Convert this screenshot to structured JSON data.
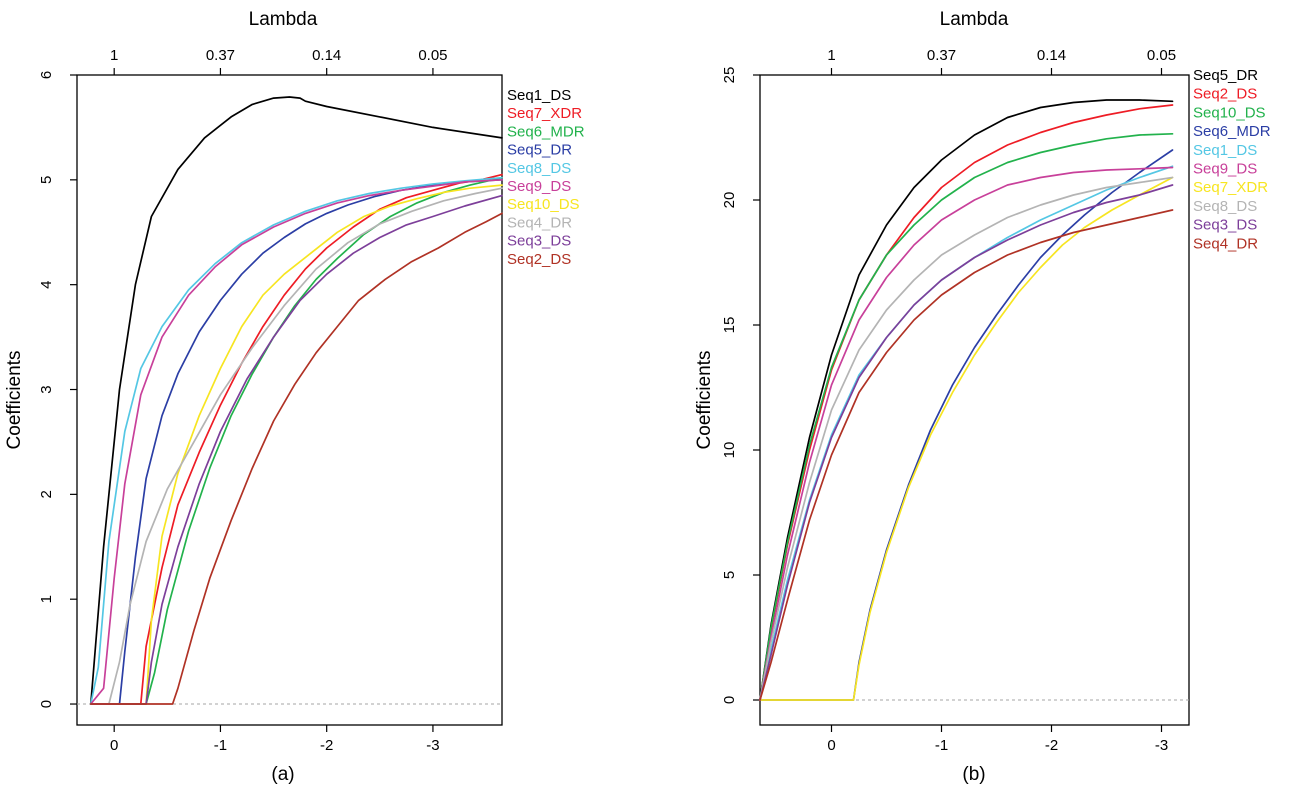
{
  "colors": {
    "black": "#000000",
    "red": "#ee1c25",
    "green": "#22b24c",
    "blue": "#2b3ea5",
    "cyan": "#54c7e4",
    "magenta": "#c8409a",
    "yellow": "#f7e521",
    "gray": "#b4b4b4",
    "purple": "#7d3f9a",
    "darkred": "#b03225",
    "zero_line": "#a6a6a6"
  },
  "chart_data": [
    {
      "type": "line",
      "title": "Lambda",
      "caption": "(a)",
      "xlabel": "",
      "ylabel": "Coefficients",
      "xlim": [
        0.35,
        -3.65
      ],
      "ylim": [
        -0.2,
        6.0
      ],
      "x_reversed": true,
      "grid": false,
      "zero_line": true,
      "x_ticks": [
        0,
        -1,
        -2,
        -3
      ],
      "x_tick_labels": [
        "0",
        "-1",
        "-2",
        "-3"
      ],
      "y_ticks": [
        0,
        1,
        2,
        3,
        4,
        5,
        6
      ],
      "y_tick_labels": [
        "0",
        "1",
        "2",
        "3",
        "4",
        "5",
        "6"
      ],
      "top_axis_ticks": [
        0,
        -1,
        -2,
        -3
      ],
      "top_axis_labels": [
        "1",
        "0.37",
        "0.14",
        "0.05"
      ],
      "legend_placement": "right",
      "series": [
        {
          "name": "Seq1_DS",
          "color": "black",
          "x": [
            0.22,
            0.1,
            -0.05,
            -0.2,
            -0.35,
            -0.6,
            -0.85,
            -1.1,
            -1.3,
            -1.5,
            -1.65,
            -1.75,
            -1.8,
            -2.0,
            -2.5,
            -3.0,
            -3.65
          ],
          "y": [
            0.0,
            1.5,
            3.0,
            4.0,
            4.65,
            5.1,
            5.4,
            5.6,
            5.72,
            5.78,
            5.79,
            5.78,
            5.75,
            5.7,
            5.6,
            5.5,
            5.4
          ]
        },
        {
          "name": "Seq7_XDR",
          "color": "red",
          "x": [
            0.22,
            -0.25,
            -0.3,
            -0.45,
            -0.6,
            -0.8,
            -1.0,
            -1.2,
            -1.4,
            -1.6,
            -1.8,
            -2.0,
            -2.25,
            -2.5,
            -2.75,
            -3.0,
            -3.25,
            -3.45,
            -3.65
          ],
          "y": [
            0.0,
            0.0,
            0.55,
            1.3,
            1.9,
            2.4,
            2.85,
            3.25,
            3.6,
            3.9,
            4.15,
            4.35,
            4.55,
            4.72,
            4.83,
            4.9,
            4.97,
            5.0,
            5.05
          ]
        },
        {
          "name": "Seq6_MDR",
          "color": "green",
          "x": [
            0.22,
            -0.3,
            -0.38,
            -0.5,
            -0.7,
            -0.9,
            -1.1,
            -1.3,
            -1.5,
            -1.7,
            -1.9,
            -2.1,
            -2.35,
            -2.6,
            -2.85,
            -3.1,
            -3.35,
            -3.65
          ],
          "y": [
            0.0,
            0.0,
            0.3,
            0.9,
            1.65,
            2.25,
            2.75,
            3.15,
            3.5,
            3.8,
            4.05,
            4.25,
            4.48,
            4.65,
            4.78,
            4.88,
            4.95,
            5.02
          ]
        },
        {
          "name": "Seq5_DR",
          "color": "blue",
          "x": [
            0.22,
            -0.05,
            -0.1,
            -0.2,
            -0.3,
            -0.45,
            -0.6,
            -0.8,
            -1.0,
            -1.2,
            -1.4,
            -1.6,
            -1.8,
            -2.0,
            -2.2,
            -2.45,
            -2.7,
            -3.0,
            -3.3,
            -3.65
          ],
          "y": [
            0.0,
            0.0,
            0.5,
            1.4,
            2.15,
            2.75,
            3.15,
            3.55,
            3.85,
            4.1,
            4.3,
            4.45,
            4.58,
            4.68,
            4.76,
            4.84,
            4.9,
            4.95,
            4.98,
            5.0
          ]
        },
        {
          "name": "Seq8_DS",
          "color": "cyan",
          "x": [
            0.22,
            0.15,
            0.05,
            -0.1,
            -0.25,
            -0.45,
            -0.7,
            -0.95,
            -1.2,
            -1.5,
            -1.8,
            -2.1,
            -2.4,
            -2.7,
            -3.0,
            -3.3,
            -3.65
          ],
          "y": [
            0.0,
            0.35,
            1.55,
            2.6,
            3.2,
            3.6,
            3.95,
            4.2,
            4.4,
            4.57,
            4.7,
            4.8,
            4.87,
            4.92,
            4.96,
            4.99,
            5.02
          ]
        },
        {
          "name": "Seq9_DS",
          "color": "magenta",
          "x": [
            0.22,
            0.1,
            0.0,
            -0.1,
            -0.25,
            -0.45,
            -0.7,
            -0.95,
            -1.2,
            -1.5,
            -1.8,
            -2.1,
            -2.4,
            -2.7,
            -3.0,
            -3.3,
            -3.65
          ],
          "y": [
            0.0,
            0.15,
            1.2,
            2.1,
            2.95,
            3.5,
            3.9,
            4.17,
            4.38,
            4.55,
            4.68,
            4.78,
            4.85,
            4.9,
            4.94,
            4.98,
            5.0
          ]
        },
        {
          "name": "Seq10_DS",
          "color": "yellow",
          "x": [
            0.22,
            -0.3,
            -0.35,
            -0.45,
            -0.6,
            -0.8,
            -1.0,
            -1.2,
            -1.4,
            -1.6,
            -1.85,
            -2.1,
            -2.35,
            -2.6,
            -2.85,
            -3.1,
            -3.35,
            -3.65
          ],
          "y": [
            0.0,
            0.0,
            0.8,
            1.6,
            2.2,
            2.75,
            3.2,
            3.6,
            3.9,
            4.1,
            4.3,
            4.5,
            4.65,
            4.75,
            4.82,
            4.88,
            4.92,
            4.95
          ]
        },
        {
          "name": "Seq4_DR",
          "color": "gray",
          "x": [
            0.22,
            0.05,
            -0.05,
            -0.15,
            -0.3,
            -0.5,
            -0.75,
            -1.0,
            -1.3,
            -1.6,
            -1.9,
            -2.2,
            -2.5,
            -2.8,
            -3.1,
            -3.4,
            -3.65
          ],
          "y": [
            0.0,
            0.0,
            0.4,
            0.95,
            1.55,
            2.05,
            2.5,
            2.95,
            3.4,
            3.8,
            4.15,
            4.4,
            4.58,
            4.7,
            4.8,
            4.87,
            4.92
          ]
        },
        {
          "name": "Seq3_DS",
          "color": "purple",
          "x": [
            0.22,
            -0.3,
            -0.35,
            -0.45,
            -0.6,
            -0.8,
            -1.0,
            -1.25,
            -1.5,
            -1.75,
            -2.0,
            -2.25,
            -2.5,
            -2.75,
            -3.0,
            -3.3,
            -3.65
          ],
          "y": [
            0.0,
            0.0,
            0.4,
            0.95,
            1.5,
            2.1,
            2.6,
            3.1,
            3.5,
            3.85,
            4.1,
            4.3,
            4.45,
            4.57,
            4.65,
            4.75,
            4.85
          ]
        },
        {
          "name": "Seq2_DS",
          "color": "darkred",
          "x": [
            0.22,
            -0.55,
            -0.6,
            -0.75,
            -0.9,
            -1.1,
            -1.3,
            -1.5,
            -1.7,
            -1.9,
            -2.1,
            -2.3,
            -2.55,
            -2.8,
            -3.05,
            -3.3,
            -3.5,
            -3.65
          ],
          "y": [
            0.0,
            0.0,
            0.15,
            0.7,
            1.2,
            1.75,
            2.25,
            2.7,
            3.05,
            3.35,
            3.6,
            3.85,
            4.05,
            4.22,
            4.35,
            4.5,
            4.6,
            4.68
          ]
        }
      ]
    },
    {
      "type": "line",
      "title": "Lambda",
      "caption": "(b)",
      "xlabel": "",
      "ylabel": "Coefficients",
      "xlim": [
        0.65,
        -3.25
      ],
      "ylim": [
        -1.0,
        25.0
      ],
      "x_reversed": true,
      "grid": false,
      "zero_line": true,
      "x_ticks": [
        0,
        -1,
        -2,
        -3
      ],
      "x_tick_labels": [
        "0",
        "-1",
        "-2",
        "-3"
      ],
      "y_ticks": [
        0,
        5,
        10,
        15,
        20,
        25
      ],
      "y_tick_labels": [
        "0",
        "5",
        "10",
        "15",
        "20",
        "25"
      ],
      "top_axis_ticks": [
        0,
        -1,
        -2,
        -3
      ],
      "top_axis_labels": [
        "1",
        "0.37",
        "0.14",
        "0.05"
      ],
      "legend_placement": "right",
      "series": [
        {
          "name": "Seq5_DR",
          "color": "black",
          "x": [
            0.65,
            0.55,
            0.4,
            0.2,
            0.0,
            -0.25,
            -0.5,
            -0.75,
            -1.0,
            -1.3,
            -1.6,
            -1.9,
            -2.2,
            -2.5,
            -2.8,
            -3.1
          ],
          "y": [
            0.0,
            3.0,
            6.5,
            10.5,
            13.8,
            17.0,
            19.0,
            20.5,
            21.6,
            22.6,
            23.3,
            23.7,
            23.9,
            24.0,
            24.0,
            23.95
          ]
        },
        {
          "name": "Seq2_DS",
          "color": "red",
          "x": [
            0.65,
            0.55,
            0.4,
            0.2,
            0.0,
            -0.25,
            -0.5,
            -0.75,
            -1.0,
            -1.3,
            -1.6,
            -1.9,
            -2.2,
            -2.5,
            -2.8,
            -3.1
          ],
          "y": [
            0.0,
            2.8,
            6.2,
            10.0,
            13.2,
            16.0,
            17.8,
            19.3,
            20.5,
            21.5,
            22.2,
            22.7,
            23.1,
            23.4,
            23.65,
            23.8
          ]
        },
        {
          "name": "Seq10_DS",
          "color": "green",
          "x": [
            0.65,
            0.55,
            0.4,
            0.2,
            0.0,
            -0.25,
            -0.5,
            -0.75,
            -1.0,
            -1.3,
            -1.6,
            -1.9,
            -2.2,
            -2.5,
            -2.8,
            -3.1
          ],
          "y": [
            0.0,
            2.9,
            6.3,
            10.2,
            13.3,
            16.0,
            17.8,
            19.0,
            20.0,
            20.9,
            21.5,
            21.9,
            22.2,
            22.45,
            22.6,
            22.65
          ]
        },
        {
          "name": "Seq6_MDR",
          "color": "blue",
          "x": [
            0.65,
            -0.2,
            -0.25,
            -0.35,
            -0.5,
            -0.7,
            -0.9,
            -1.1,
            -1.3,
            -1.5,
            -1.7,
            -1.9,
            -2.1,
            -2.3,
            -2.55,
            -2.8,
            -3.1
          ],
          "y": [
            0.0,
            0.0,
            1.5,
            3.6,
            6.0,
            8.6,
            10.8,
            12.6,
            14.1,
            15.4,
            16.6,
            17.7,
            18.6,
            19.4,
            20.3,
            21.1,
            22.0
          ]
        },
        {
          "name": "Seq1_DS",
          "color": "cyan",
          "x": [
            0.65,
            0.55,
            0.4,
            0.2,
            0.0,
            -0.25,
            -0.5,
            -0.75,
            -1.0,
            -1.3,
            -1.6,
            -1.9,
            -2.2,
            -2.5,
            -2.8,
            -3.1
          ],
          "y": [
            0.0,
            2.0,
            4.8,
            8.0,
            10.6,
            13.0,
            14.5,
            15.8,
            16.8,
            17.7,
            18.5,
            19.2,
            19.8,
            20.4,
            20.9,
            21.35
          ]
        },
        {
          "name": "Seq9_DS",
          "color": "magenta",
          "x": [
            0.65,
            0.55,
            0.4,
            0.2,
            0.0,
            -0.25,
            -0.5,
            -0.75,
            -1.0,
            -1.3,
            -1.6,
            -1.9,
            -2.2,
            -2.5,
            -2.8,
            -3.1
          ],
          "y": [
            0.0,
            2.5,
            5.8,
            9.5,
            12.6,
            15.2,
            16.9,
            18.2,
            19.2,
            20.0,
            20.6,
            20.9,
            21.1,
            21.2,
            21.25,
            21.3
          ]
        },
        {
          "name": "Seq7_XDR",
          "color": "yellow",
          "x": [
            0.65,
            -0.2,
            -0.25,
            -0.35,
            -0.5,
            -0.7,
            -0.9,
            -1.1,
            -1.3,
            -1.5,
            -1.7,
            -1.9,
            -2.1,
            -2.3,
            -2.55,
            -2.8,
            -3.1
          ],
          "y": [
            0.0,
            0.0,
            1.4,
            3.5,
            5.9,
            8.5,
            10.6,
            12.3,
            13.8,
            15.1,
            16.3,
            17.3,
            18.2,
            18.9,
            19.6,
            20.2,
            20.9
          ]
        },
        {
          "name": "Seq8_DS",
          "color": "gray",
          "x": [
            0.65,
            0.55,
            0.4,
            0.2,
            0.0,
            -0.25,
            -0.5,
            -0.75,
            -1.0,
            -1.3,
            -1.6,
            -1.9,
            -2.2,
            -2.5,
            -2.8,
            -3.1
          ],
          "y": [
            0.0,
            2.3,
            5.3,
            8.7,
            11.6,
            14.0,
            15.6,
            16.8,
            17.8,
            18.6,
            19.3,
            19.8,
            20.2,
            20.5,
            20.7,
            20.9
          ]
        },
        {
          "name": "Seq3_DS",
          "color": "purple",
          "x": [
            0.65,
            0.55,
            0.4,
            0.2,
            0.0,
            -0.25,
            -0.5,
            -0.75,
            -1.0,
            -1.3,
            -1.6,
            -1.9,
            -2.2,
            -2.5,
            -2.8,
            -3.1
          ],
          "y": [
            0.0,
            1.8,
            4.6,
            7.9,
            10.5,
            12.9,
            14.5,
            15.8,
            16.8,
            17.7,
            18.4,
            19.0,
            19.5,
            19.9,
            20.2,
            20.6
          ]
        },
        {
          "name": "Seq4_DR",
          "color": "darkred",
          "x": [
            0.65,
            0.55,
            0.4,
            0.2,
            0.0,
            -0.25,
            -0.5,
            -0.75,
            -1.0,
            -1.3,
            -1.6,
            -1.9,
            -2.2,
            -2.5,
            -2.8,
            -3.1
          ],
          "y": [
            0.0,
            1.5,
            4.0,
            7.2,
            9.8,
            12.3,
            13.9,
            15.2,
            16.2,
            17.1,
            17.8,
            18.3,
            18.7,
            19.0,
            19.3,
            19.6
          ]
        }
      ]
    }
  ]
}
